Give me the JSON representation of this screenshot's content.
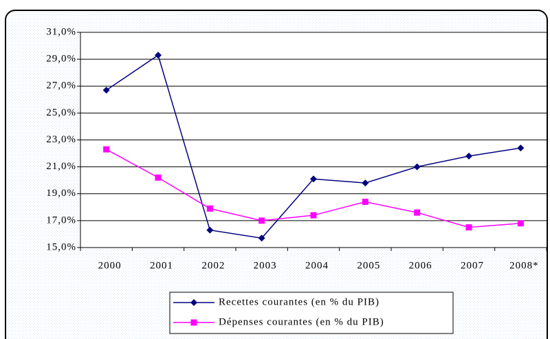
{
  "chart_data": {
    "type": "line",
    "categories": [
      "2000",
      "2001",
      "2002",
      "2003",
      "2004",
      "2005",
      "2006",
      "2007",
      "2008*"
    ],
    "series": [
      {
        "name": "Recettes courantes (en % du PIB)",
        "color": "#000080",
        "marker": "diamond",
        "values": [
          26.7,
          29.3,
          16.3,
          15.7,
          20.1,
          19.8,
          21.0,
          21.8,
          22.4
        ]
      },
      {
        "name": "Dépenses courantes (en % du PIB)",
        "color": "#ff00ff",
        "marker": "square",
        "values": [
          22.3,
          20.2,
          17.9,
          17.0,
          17.4,
          18.4,
          17.6,
          16.5,
          16.8
        ]
      }
    ],
    "ylim": [
      15,
      31
    ],
    "yticks": [
      {
        "value": 15,
        "label": "15,0%"
      },
      {
        "value": 17,
        "label": "17,0%"
      },
      {
        "value": 19,
        "label": "19,0%"
      },
      {
        "value": 21,
        "label": "21,0%"
      },
      {
        "value": 23,
        "label": "23,0%"
      },
      {
        "value": 25,
        "label": "25,0%"
      },
      {
        "value": 27,
        "label": "27,0%"
      },
      {
        "value": 29,
        "label": "29,0%"
      },
      {
        "value": 31,
        "label": "31,0%"
      }
    ],
    "grid": true,
    "legend": "bottom"
  }
}
